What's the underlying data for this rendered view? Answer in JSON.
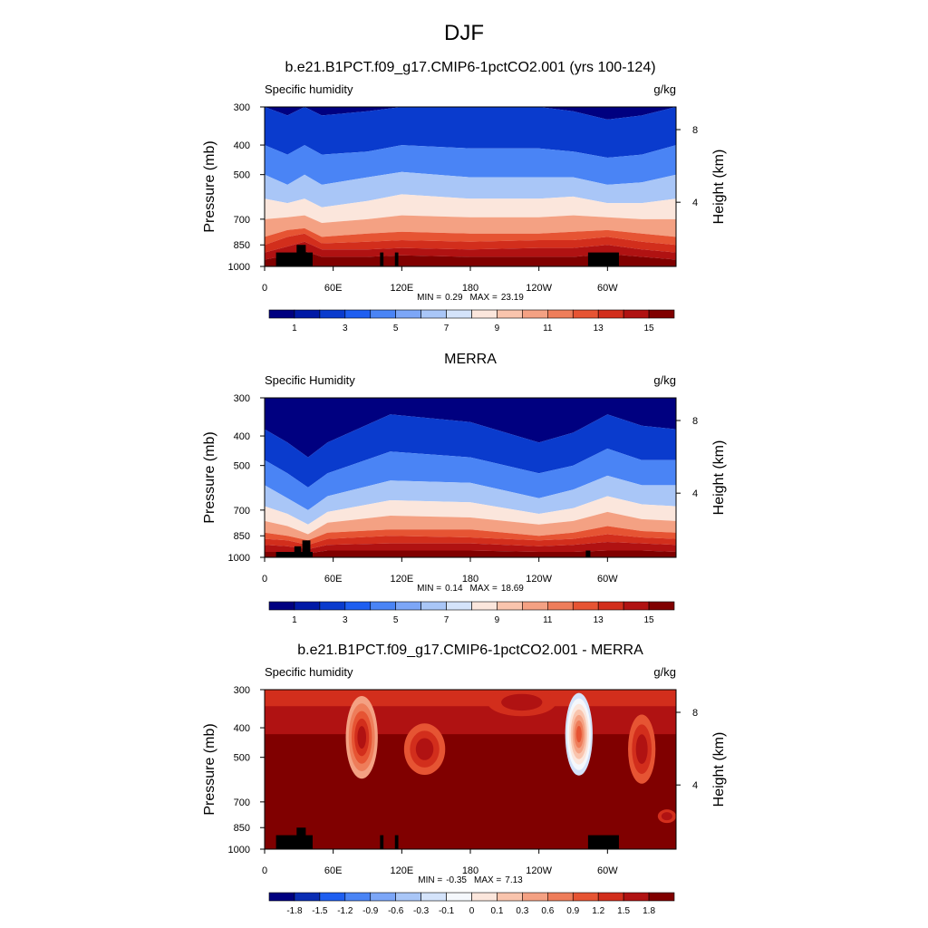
{
  "figure": {
    "title": "DJF"
  },
  "colors": {
    "abs_levels": [
      "#000080",
      "#0019a6",
      "#0a3bcd",
      "#1e5ef0",
      "#4a84f5",
      "#7ca6f7",
      "#a9c6f7",
      "#d4e3fa",
      "#fbe6dc",
      "#f9c4ad",
      "#f4a183",
      "#ee7d5a",
      "#e65433",
      "#d22e1c",
      "#b01212",
      "#800000"
    ],
    "diff_levels": [
      "#000080",
      "#0a2db4",
      "#1e5ef0",
      "#4a84f5",
      "#7ca6f7",
      "#a9c6f7",
      "#d4e3fa",
      "#f5f8fc",
      "#fbe6dc",
      "#f9c4ad",
      "#f4a183",
      "#ee7d5a",
      "#e65433",
      "#d22e1c",
      "#b01212",
      "#800000"
    ],
    "mask": "#000000"
  },
  "chart_data": [
    {
      "type": "heatmap",
      "title": "b.e21.B1PCT.f09_g17.CMIP6-1pctCO2.001 (yrs 100-124)",
      "left_label": "Specific humidity",
      "right_label": "g/kg",
      "ylabel": "Pressure (mb)",
      "y2label": "Height (km)",
      "xticks": [
        "0",
        "60E",
        "120E",
        "180",
        "120W",
        "60W"
      ],
      "xtick_lons": [
        0,
        60,
        120,
        180,
        240,
        300
      ],
      "xlim": [
        0,
        360
      ],
      "yticks": [
        300,
        400,
        500,
        700,
        850,
        1000
      ],
      "ylim": [
        1000,
        300
      ],
      "y2ticks": [
        {
          "label": "8",
          "pressure": 356
        },
        {
          "label": "4",
          "pressure": 616
        }
      ],
      "min_label": "MIN =",
      "min_value": "0.29",
      "max_label": "MAX =",
      "max_value": "23.19",
      "colorbar": {
        "tick_labels": [
          "1",
          "3",
          "5",
          "7",
          "9",
          "11",
          "13",
          "15"
        ],
        "tick_values": [
          1,
          3,
          5,
          7,
          9,
          11,
          13,
          15
        ],
        "levels": [
          0.5,
          1,
          1.5,
          2,
          2.5,
          3,
          4,
          5,
          6,
          7,
          8,
          9,
          10,
          11,
          12,
          13,
          14,
          15
        ]
      },
      "columns": [
        {
          "lon": 0,
          "p": [
            300,
            400,
            500,
            600,
            700,
            800,
            850,
            900,
            950
          ]
        },
        {
          "lon": 20,
          "p": [
            320,
            430,
            540,
            620,
            690,
            760,
            800,
            860,
            920
          ]
        },
        {
          "lon": 35,
          "p": [
            300,
            400,
            500,
            600,
            680,
            750,
            780,
            830,
            890
          ]
        },
        {
          "lon": 50,
          "p": [
            320,
            430,
            540,
            640,
            720,
            800,
            840,
            880,
            930
          ]
        },
        {
          "lon": 90,
          "p": [
            310,
            420,
            510,
            610,
            700,
            780,
            830,
            880,
            930
          ]
        },
        {
          "lon": 120,
          "p": [
            300,
            400,
            490,
            580,
            680,
            770,
            820,
            870,
            920
          ]
        },
        {
          "lon": 180,
          "p": [
            300,
            410,
            510,
            600,
            690,
            780,
            830,
            880,
            930
          ]
        },
        {
          "lon": 240,
          "p": [
            300,
            410,
            510,
            600,
            690,
            780,
            820,
            870,
            930
          ]
        },
        {
          "lon": 270,
          "p": [
            310,
            420,
            510,
            590,
            680,
            770,
            820,
            870,
            930
          ]
        },
        {
          "lon": 300,
          "p": [
            330,
            440,
            540,
            620,
            690,
            760,
            800,
            850,
            910
          ]
        },
        {
          "lon": 330,
          "p": [
            320,
            430,
            530,
            620,
            700,
            780,
            830,
            880,
            930
          ]
        },
        {
          "lon": 360,
          "p": [
            300,
            400,
            500,
            600,
            700,
            800,
            850,
            900,
            950
          ]
        }
      ],
      "mask": [
        {
          "lon0": 10,
          "lon1": 42,
          "p0": 900,
          "p1": 1000
        },
        {
          "lon0": 28,
          "lon1": 36,
          "p0": 850,
          "p1": 1000
        },
        {
          "lon0": 101,
          "lon1": 104,
          "p0": 900,
          "p1": 1000
        },
        {
          "lon0": 114,
          "lon1": 117,
          "p0": 900,
          "p1": 1000
        },
        {
          "lon0": 283,
          "lon1": 310,
          "p0": 900,
          "p1": 1000
        }
      ]
    },
    {
      "type": "heatmap",
      "title": "MERRA",
      "left_label": "Specific Humidity",
      "right_label": "g/kg",
      "ylabel": "Pressure (mb)",
      "y2label": "Height (km)",
      "xticks": [
        "0",
        "60E",
        "120E",
        "180",
        "120W",
        "60W"
      ],
      "xtick_lons": [
        0,
        60,
        120,
        180,
        240,
        300
      ],
      "xlim": [
        0,
        360
      ],
      "yticks": [
        300,
        400,
        500,
        700,
        850,
        1000
      ],
      "ylim": [
        1000,
        300
      ],
      "y2ticks": [
        {
          "label": "8",
          "pressure": 356
        },
        {
          "label": "4",
          "pressure": 616
        }
      ],
      "min_label": "MIN =",
      "min_value": "0.14",
      "max_label": "MAX =",
      "max_value": "18.69",
      "colorbar": {
        "tick_labels": [
          "1",
          "3",
          "5",
          "7",
          "9",
          "11",
          "13",
          "15"
        ],
        "tick_values": [
          1,
          3,
          5,
          7,
          9,
          11,
          13,
          15
        ],
        "levels": [
          0.5,
          1,
          1.5,
          2,
          2.5,
          3,
          4,
          5,
          6,
          7,
          8,
          9,
          10,
          11,
          12,
          13,
          14,
          15
        ]
      },
      "columns": [
        {
          "lon": 0,
          "p": [
            380,
            480,
            580,
            680,
            760,
            830,
            870,
            910,
            960
          ]
        },
        {
          "lon": 20,
          "p": [
            420,
            530,
            640,
            720,
            790,
            850,
            880,
            920,
            960
          ]
        },
        {
          "lon": 38,
          "p": [
            470,
            590,
            700,
            780,
            840,
            880,
            910,
            940,
            970
          ]
        },
        {
          "lon": 55,
          "p": [
            420,
            530,
            630,
            710,
            770,
            830,
            870,
            910,
            950
          ]
        },
        {
          "lon": 110,
          "p": [
            340,
            450,
            560,
            650,
            730,
            810,
            850,
            900,
            950
          ]
        },
        {
          "lon": 180,
          "p": [
            360,
            470,
            570,
            660,
            740,
            810,
            860,
            900,
            950
          ]
        },
        {
          "lon": 240,
          "p": [
            420,
            530,
            640,
            720,
            780,
            850,
            880,
            920,
            960
          ]
        },
        {
          "lon": 270,
          "p": [
            390,
            500,
            600,
            690,
            760,
            830,
            870,
            910,
            960
          ]
        },
        {
          "lon": 300,
          "p": [
            340,
            440,
            540,
            630,
            710,
            790,
            840,
            890,
            950
          ]
        },
        {
          "lon": 330,
          "p": [
            370,
            480,
            580,
            670,
            750,
            820,
            860,
            900,
            950
          ]
        },
        {
          "lon": 360,
          "p": [
            380,
            480,
            580,
            680,
            760,
            830,
            870,
            910,
            960
          ]
        }
      ],
      "mask": [
        {
          "lon0": 10,
          "lon1": 42,
          "p0": 960,
          "p1": 1000
        },
        {
          "lon0": 26,
          "lon1": 32,
          "p0": 920,
          "p1": 1000
        },
        {
          "lon0": 33,
          "lon1": 40,
          "p0": 880,
          "p1": 1000
        },
        {
          "lon0": 281,
          "lon1": 285,
          "p0": 950,
          "p1": 1000
        }
      ]
    },
    {
      "type": "heatmap",
      "title": "b.e21.B1PCT.f09_g17.CMIP6-1pctCO2.001 - MERRA",
      "left_label": "Specific humidity",
      "right_label": "g/kg",
      "ylabel": "Pressure (mb)",
      "y2label": "Height (km)",
      "xticks": [
        "0",
        "60E",
        "120E",
        "180",
        "120W",
        "60W"
      ],
      "xtick_lons": [
        0,
        60,
        120,
        180,
        240,
        300
      ],
      "xlim": [
        0,
        360
      ],
      "yticks": [
        300,
        400,
        500,
        700,
        850,
        1000
      ],
      "ylim": [
        1000,
        300
      ],
      "y2ticks": [
        {
          "label": "8",
          "pressure": 356
        },
        {
          "label": "4",
          "pressure": 616
        }
      ],
      "min_label": "MIN =",
      "min_value": "-0.35",
      "max_label": "MAX =",
      "max_value": "7.13",
      "colorbar": {
        "tick_labels": [
          "-1.8",
          "-1.5",
          "-1.2",
          "-0.9",
          "-0.6",
          "-0.3",
          "-0.1",
          "0",
          "0.1",
          "0.3",
          "0.6",
          "0.9",
          "1.2",
          "1.5",
          "1.8"
        ],
        "tick_values": [
          -1.8,
          -1.5,
          -1.2,
          -0.9,
          -0.6,
          -0.3,
          -0.1,
          0,
          0.1,
          0.3,
          0.6,
          0.9,
          1.2,
          1.5,
          1.8
        ],
        "levels": [
          -1.8,
          -1.5,
          -1.2,
          -0.9,
          -0.6,
          -0.3,
          -0.1,
          0,
          0.1,
          0.3,
          0.6,
          0.9,
          1.2,
          1.5,
          1.8
        ]
      },
      "diff_fields": [
        {
          "cx": 85,
          "rx": 14,
          "cy": 430,
          "ry": 130,
          "shades": [
            0.3,
            0.6,
            0.9,
            1.2,
            1.5
          ]
        },
        {
          "cx": 140,
          "rx": 18,
          "cy": 470,
          "ry": 90,
          "shades": [
            0.9,
            1.2,
            1.5
          ]
        },
        {
          "cx": 225,
          "rx": 30,
          "cy": 330,
          "ry": 40,
          "shades": [
            1.2,
            1.5
          ]
        },
        {
          "cx": 275,
          "rx": 12,
          "cy": 420,
          "ry": 140,
          "shades": [
            -0.3,
            -0.1,
            0,
            0.1,
            0.3,
            0.6,
            0.9
          ]
        },
        {
          "cx": 330,
          "rx": 12,
          "cy": 470,
          "ry": 120,
          "shades": [
            0.9,
            1.2,
            1.5
          ]
        },
        {
          "cx": 352,
          "rx": 8,
          "cy": 780,
          "ry": 40,
          "shades": [
            1.2,
            1.5
          ]
        }
      ],
      "mask": [
        {
          "lon0": 10,
          "lon1": 42,
          "p0": 900,
          "p1": 1000
        },
        {
          "lon0": 28,
          "lon1": 36,
          "p0": 850,
          "p1": 1000
        },
        {
          "lon0": 101,
          "lon1": 104,
          "p0": 900,
          "p1": 1000
        },
        {
          "lon0": 114,
          "lon1": 117,
          "p0": 900,
          "p1": 1000
        },
        {
          "lon0": 283,
          "lon1": 310,
          "p0": 900,
          "p1": 1000
        }
      ]
    }
  ]
}
